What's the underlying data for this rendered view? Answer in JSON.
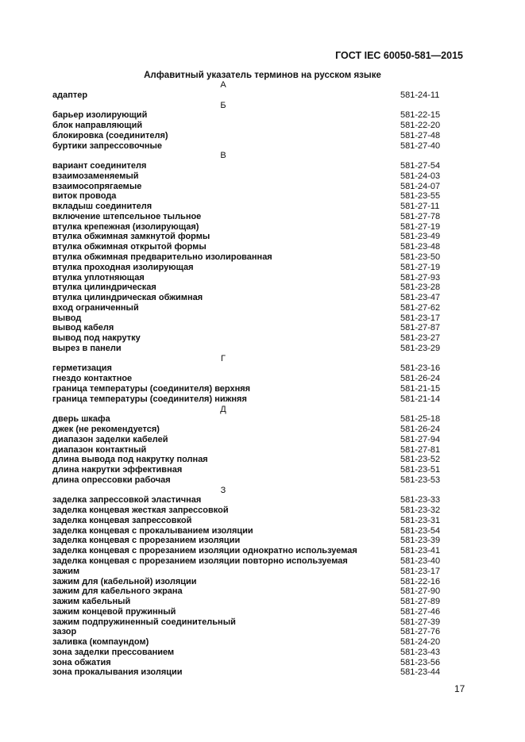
{
  "header": {
    "doc_id": "ГОСТ IEC 60050-581—2015"
  },
  "title": "Алфавитный указатель терминов на русском языке",
  "sections": [
    {
      "letter": "А",
      "entries": [
        {
          "term": "адаптер",
          "code": "581-24-11"
        }
      ]
    },
    {
      "letter": "Б",
      "entries": [
        {
          "term": "барьер изолирующий",
          "code": "581-22-15"
        },
        {
          "term": "блок направляющий",
          "code": "581-22-20"
        },
        {
          "term": "блокировка (соединителя)",
          "code": "581-27-48"
        },
        {
          "term": "буртики запрессовочные",
          "code": "581-27-40"
        }
      ]
    },
    {
      "letter": "В",
      "entries": [
        {
          "term": "вариант соединителя",
          "code": "581-27-54"
        },
        {
          "term": "взаимозаменяемый",
          "code": "581-24-03"
        },
        {
          "term": "взаимосопрягаемые",
          "code": "581-24-07"
        },
        {
          "term": "виток провода",
          "code": "581-23-55"
        },
        {
          "term": "вкладыш соединителя",
          "code": "581-27-11"
        },
        {
          "term": "включение штепсельное тыльное",
          "code": "581-27-78"
        },
        {
          "term": "втулка крепежная (изолирующая)",
          "code": "581-27-19"
        },
        {
          "term": "втулка обжимная замкнутой формы",
          "code": "581-23-49"
        },
        {
          "term": "втулка обжимная открытой формы",
          "code": "581-23-48"
        },
        {
          "term": "втулка обжимная предварительно изолированная",
          "code": "581-23-50"
        },
        {
          "term": "втулка проходная  изолирующая",
          "code": "581-27-19"
        },
        {
          "term": "втулка уплотняющая",
          "code": "581-27-93"
        },
        {
          "term": "втулка цилиндрическая",
          "code": "581-23-28"
        },
        {
          "term": "втулка цилиндрическая обжимная",
          "code": "581-23-47"
        },
        {
          "term": "вход ограниченный",
          "code": "581-27-62"
        },
        {
          "term": "вывод",
          "code": "581-23-17"
        },
        {
          "term": "вывод кабеля",
          "code": "581-27-87"
        },
        {
          "term": "вывод под накрутку",
          "code": "581-23-27"
        },
        {
          "term": "вырез в панели",
          "code": "581-23-29"
        }
      ]
    },
    {
      "letter": "Г",
      "entries": [
        {
          "term": "герметизация",
          "code": "581-23-16"
        },
        {
          "term": "гнездо контактное",
          "code": "581-26-24"
        },
        {
          "term": "граница температуры (соединителя) верхняя",
          "code": "581-21-15"
        },
        {
          "term": "граница температуры (соединителя) нижняя",
          "code": "581-21-14"
        }
      ]
    },
    {
      "letter": "Д",
      "entries": [
        {
          "term": "дверь шкафа",
          "code": "581-25-18"
        },
        {
          "term": "джек (не рекомендуется)",
          "code": "581-26-24"
        },
        {
          "term": "диапазон заделки кабелей",
          "code": "581-27-94"
        },
        {
          "term": "диапазон контактный",
          "code": "581-27-81"
        },
        {
          "term": "длина вывода под накрутку полная",
          "code": "581-23-52"
        },
        {
          "term": "длина накрутки эффективная",
          "code": "581-23-51"
        },
        {
          "term": "длина опрессовки рабочая",
          "code": "581-23-53"
        }
      ]
    },
    {
      "letter": "З",
      "entries": [
        {
          "term": "заделка запрессовкой эластичная",
          "code": "581-23-33"
        },
        {
          "term": "заделка концевая жесткая запрессовкой",
          "code": "581-23-32"
        },
        {
          "term": "заделка концевая запрессовкой",
          "code": "581-23-31"
        },
        {
          "term": "заделка концевая с прокалыванием изоляции",
          "code": "581-23-54"
        },
        {
          "term": "заделка концевая с прорезанием изоляции",
          "code": "581-23-39"
        },
        {
          "term": "заделка концевая с прорезанием изоляции однократно используемая",
          "code": "581-23-41"
        },
        {
          "term": "заделка концевая с прорезанием изоляции повторно используемая",
          "code": "581-23-40"
        },
        {
          "term": "зажим",
          "code": "581-23-17"
        },
        {
          "term": "зажим для (кабельной) изоляции",
          "code": "581-22-16"
        },
        {
          "term": "зажим для кабельного экрана",
          "code": "581-27-90"
        },
        {
          "term": "зажим кабельный",
          "code": "581-27-89"
        },
        {
          "term": "зажим концевой пружинный",
          "code": "581-27-46"
        },
        {
          "term": "зажим подпружиненный соединительный",
          "code": "581-27-39"
        },
        {
          "term": "зазор",
          "code": "581-27-76"
        },
        {
          "term": "заливка (компаундом)",
          "code": "581-24-20"
        },
        {
          "term": "зона заделки прессованием",
          "code": "581-23-43"
        },
        {
          "term": "зона обжатия",
          "code": "581-23-56"
        },
        {
          "term": "зона прокалывания изоляции",
          "code": "581-23-44"
        }
      ]
    }
  ],
  "page_number": "17"
}
